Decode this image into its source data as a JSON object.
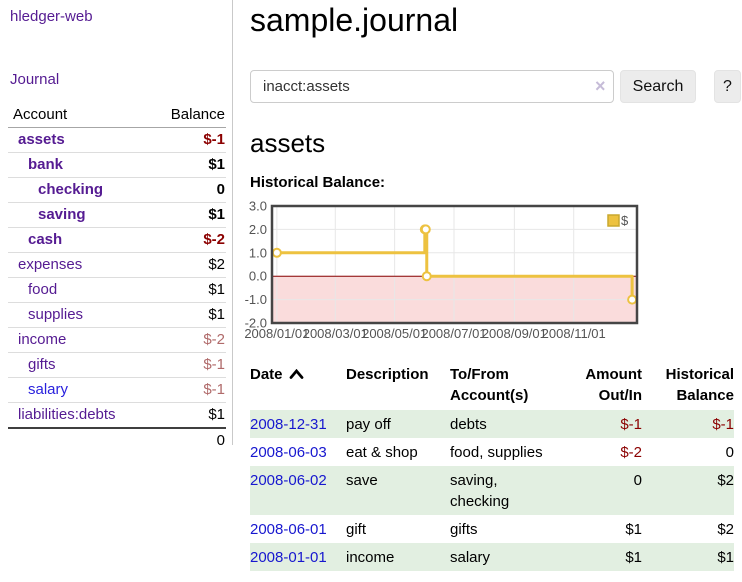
{
  "sidebar": {
    "brand": "hledger-web",
    "journal_link": "Journal",
    "accounts_table": {
      "account_header": "Account",
      "balance_header": "Balance",
      "rows": [
        {
          "name": "assets",
          "level": 0,
          "bold": true,
          "balance": "$-1",
          "balance_tone": "negative-strong"
        },
        {
          "name": "bank",
          "level": 1,
          "bold": true,
          "balance": "$1",
          "balance_tone": "normal"
        },
        {
          "name": "checking",
          "level": 2,
          "bold": true,
          "balance": "0",
          "balance_tone": "normal"
        },
        {
          "name": "saving",
          "level": 2,
          "bold": true,
          "balance": "$1",
          "balance_tone": "normal"
        },
        {
          "name": "cash",
          "level": 1,
          "bold": true,
          "balance": "$-2",
          "balance_tone": "negative-strong"
        },
        {
          "name": "expenses",
          "level": 0,
          "bold": false,
          "balance": "$2",
          "balance_tone": "normal"
        },
        {
          "name": "food",
          "level": 1,
          "bold": false,
          "balance": "$1",
          "balance_tone": "normal"
        },
        {
          "name": "supplies",
          "level": 1,
          "bold": false,
          "balance": "$1",
          "balance_tone": "normal"
        },
        {
          "name": "income",
          "level": 0,
          "bold": false,
          "balance": "$-2",
          "balance_tone": "negative-soft"
        },
        {
          "name": "gifts",
          "level": 1,
          "bold": false,
          "balance": "$-1",
          "balance_tone": "negative-soft"
        },
        {
          "name": "salary",
          "level": 1,
          "bold": false,
          "balance": "$-1",
          "balance_tone": "negative-soft",
          "link_tone": "unvisited"
        },
        {
          "name": "liabilities:debts",
          "level": 0,
          "bold": false,
          "balance": "$1",
          "balance_tone": "normal"
        }
      ],
      "total": "0"
    }
  },
  "main": {
    "title": "sample.journal",
    "search": {
      "value": "inacct:assets",
      "clear_icon": "×",
      "search_button": "Search",
      "help_button": "?"
    },
    "account_heading": "assets",
    "chart_label": "Historical Balance:"
  },
  "chart_data": {
    "type": "line",
    "title": "Historical Balance",
    "step": true,
    "x_type": "date",
    "xlim_days": [
      -5,
      370
    ],
    "ylim": [
      -2.0,
      3.0
    ],
    "y_ticks": [
      3.0,
      2.0,
      1.0,
      0.0,
      -1.0,
      -2.0
    ],
    "x_ticks": [
      {
        "label": "2008/01/01",
        "day": 0
      },
      {
        "label": "2008/03/01",
        "day": 60
      },
      {
        "label": "2008/05/01",
        "day": 121
      },
      {
        "label": "2008/07/01",
        "day": 182
      },
      {
        "label": "2008/09/01",
        "day": 244
      },
      {
        "label": "2008/11/01",
        "day": 305
      }
    ],
    "series": [
      {
        "name": "$",
        "color": "#EDC240",
        "points": [
          {
            "date": "2008-01-01",
            "day": 0,
            "value": 1
          },
          {
            "date": "2008-06-01",
            "day": 152,
            "value": 2
          },
          {
            "date": "2008-06-02",
            "day": 153,
            "value": 2
          },
          {
            "date": "2008-06-03",
            "day": 154,
            "value": 0
          },
          {
            "date": "2008-12-31",
            "day": 365,
            "value": -1
          }
        ]
      }
    ],
    "grid": true,
    "legend": {
      "label": "$",
      "position": "top-right"
    },
    "negative_region_fill": "#fadcdc",
    "zero_line_color": "#8b0000",
    "axis_text_color": "#545454"
  },
  "register_table": {
    "headers": {
      "date": "Date",
      "description": "Description",
      "accounts": "To/From Account(s)",
      "amount": "Amount Out/In",
      "balance": "Historical Balance"
    },
    "sort": {
      "column": "date",
      "indicator": "up-chevron"
    },
    "rows": [
      {
        "date": "2008-12-31",
        "description": "pay off",
        "accounts": "debts",
        "amount": "$-1",
        "amount_negative": true,
        "balance": "$-1",
        "balance_negative": true
      },
      {
        "date": "2008-06-03",
        "description": "eat & shop",
        "accounts": "food, supplies",
        "amount": "$-2",
        "amount_negative": true,
        "balance": "0",
        "balance_negative": false
      },
      {
        "date": "2008-06-02",
        "description": "save",
        "accounts": "saving, checking",
        "amount": "0",
        "amount_negative": false,
        "balance": "$2",
        "balance_negative": false
      },
      {
        "date": "2008-06-01",
        "description": "gift",
        "accounts": "gifts",
        "amount": "$1",
        "amount_negative": false,
        "balance": "$2",
        "balance_negative": false
      },
      {
        "date": "2008-01-01",
        "description": "income",
        "accounts": "salary",
        "amount": "$1",
        "amount_negative": false,
        "balance": "$1",
        "balance_negative": false
      }
    ]
  },
  "colors": {
    "link_purple": "#551b92",
    "link_blue_unvisited": "#2a22dd",
    "date_link_blue": "#1717cf",
    "negative_strong": "#8b0000",
    "negative_soft": "#b06a6a",
    "row_stripe_green": "#e2efe1",
    "chart_line": "#EDC240",
    "chart_negative_region": "#fadcdc"
  }
}
